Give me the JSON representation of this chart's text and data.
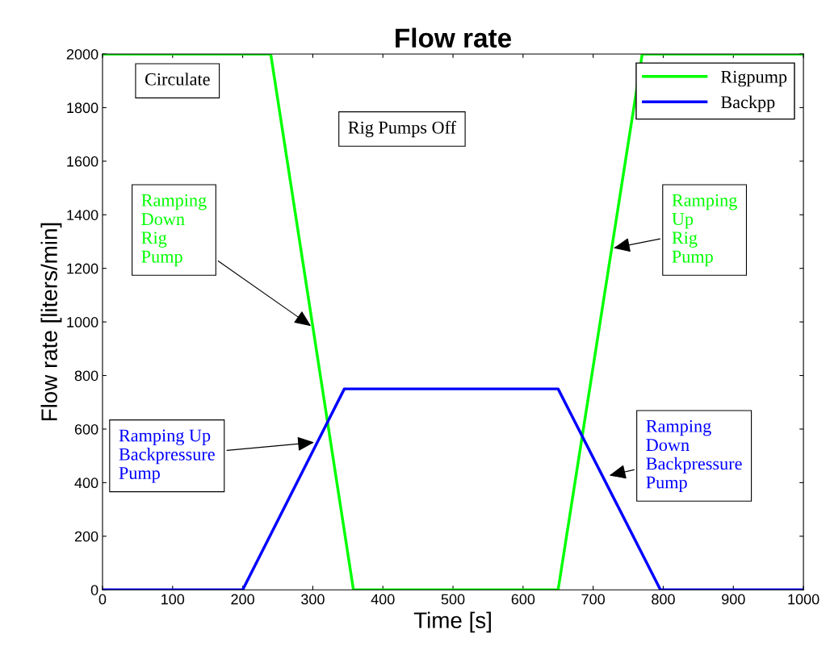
{
  "chart_data": {
    "type": "line",
    "title": "Flow rate",
    "xlabel": "Time [s]",
    "ylabel": "Flow rate [liters/min]",
    "xlim": [
      0,
      1000
    ],
    "xticks": [
      0,
      100,
      200,
      300,
      400,
      500,
      600,
      700,
      800,
      900,
      1000
    ],
    "ylim": [
      0,
      2000
    ],
    "yticks": [
      0,
      200,
      400,
      600,
      800,
      1000,
      1200,
      1400,
      1600,
      1800,
      2000
    ],
    "grid": false,
    "legend": "top right",
    "line_style": "solid",
    "marker": "none",
    "series": [
      {
        "name": "Rigpump",
        "color": "#00ff00",
        "x": [
          0,
          240,
          358,
          650,
          770,
          1000
        ],
        "values": [
          2000,
          2000,
          0,
          0,
          2000,
          2000
        ]
      },
      {
        "name": "Backpp",
        "color": "#0000ff",
        "x": [
          0,
          200,
          345,
          650,
          796,
          1000
        ],
        "values": [
          0,
          0,
          750,
          750,
          0,
          0
        ]
      }
    ],
    "annotations": [
      "Circulate",
      "Rig Pumps Off",
      {
        "text": "Ramping\nDown\nRig\nPump",
        "x": 300,
        "y": 980
      },
      {
        "text": "Ramping\nUp\nRig\nPump",
        "x": 726,
        "y": 1274
      },
      {
        "text": "Ramping Up\nBackpressure\nPump",
        "x": 305,
        "y": 551
      },
      {
        "text": "Ramping\nDown\nBackpressure\nPump",
        "x": 720,
        "y": 425
      }
    ]
  }
}
